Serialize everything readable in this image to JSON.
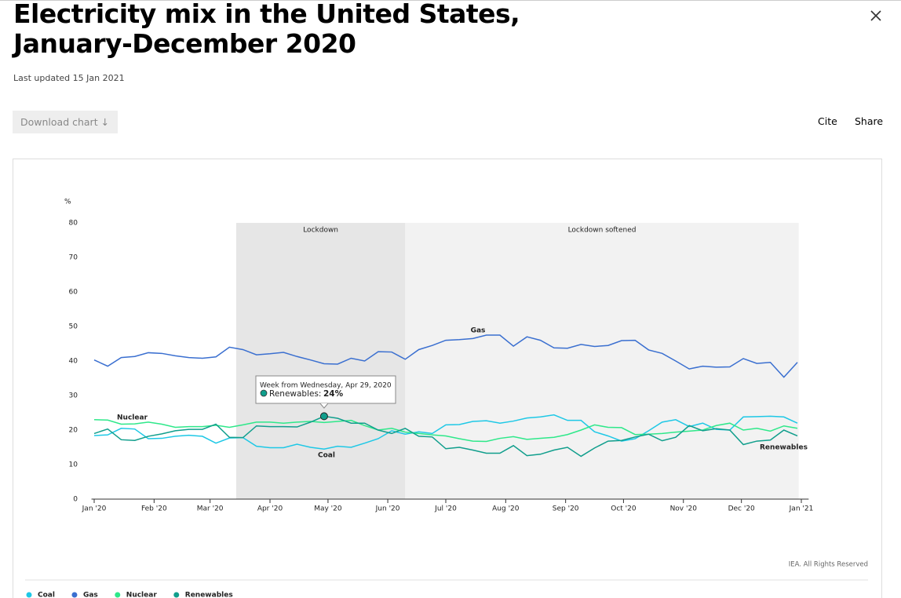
{
  "header": {
    "title": "Electricity mix in the United States, January-December 2020",
    "updated": "Last updated 15 Jan 2021",
    "download": "Download chart ↓",
    "cite": "Cite",
    "share": "Share"
  },
  "chart_data": {
    "type": "line",
    "y_unit": "%",
    "credit": "IEA. All Rights Reserved",
    "x": [
      0,
      1,
      2,
      3,
      4,
      5,
      6,
      7,
      8,
      9,
      10,
      11,
      12,
      13,
      14,
      15,
      16,
      17,
      18,
      19,
      20,
      21,
      22,
      23,
      24,
      25,
      26,
      27,
      28,
      29,
      30,
      31,
      32,
      33,
      34,
      35,
      36,
      37,
      38,
      39,
      40,
      41,
      42,
      43,
      44,
      45,
      46,
      47,
      48,
      49,
      50,
      51,
      52
    ],
    "xlim": [
      -0.2,
      52.6
    ],
    "xticks": [
      {
        "value": 0,
        "label": "Jan '20"
      },
      {
        "value": 4.43,
        "label": "Feb '20"
      },
      {
        "value": 8.57,
        "label": "Mar '20"
      },
      {
        "value": 13,
        "label": "Apr '20"
      },
      {
        "value": 17.29,
        "label": "May '20"
      },
      {
        "value": 21.71,
        "label": "Jun '20"
      },
      {
        "value": 26,
        "label": "Jul '20"
      },
      {
        "value": 30.43,
        "label": "Aug '20"
      },
      {
        "value": 34.86,
        "label": "Sep '20"
      },
      {
        "value": 39.14,
        "label": "Oct '20"
      },
      {
        "value": 43.57,
        "label": "Nov '20"
      },
      {
        "value": 47.86,
        "label": "Dec '20"
      },
      {
        "value": 52.29,
        "label": "Jan '21"
      }
    ],
    "ylim": [
      0,
      80
    ],
    "yticks": [
      0,
      10,
      20,
      30,
      40,
      50,
      60,
      70,
      80
    ],
    "periods": [
      {
        "label": "Lockdown",
        "x": [
          10.5,
          23
        ],
        "color": "#e6e6e6"
      },
      {
        "label": "Lockdown softened",
        "x": [
          23,
          52.1
        ],
        "color": "#f2f2f2"
      }
    ],
    "series": [
      {
        "name": "Coal",
        "color": "#1ec8e6",
        "values": [
          18.4,
          18.6,
          20.5,
          20.3,
          17.5,
          17.6,
          18.2,
          18.5,
          18.2,
          16.2,
          17.7,
          17.8,
          15.3,
          14.9,
          14.9,
          15.9,
          15,
          14.5,
          15.3,
          15,
          16.2,
          17.5,
          19.8,
          18.8,
          19.5,
          19,
          21.5,
          21.6,
          22.5,
          22.7,
          22,
          22.6,
          23.5,
          23.8,
          24.4,
          22.8,
          22.8,
          19.5,
          18.3,
          16.8,
          17.5,
          19.8,
          22.3,
          23,
          21,
          22,
          20.2,
          20,
          23.8,
          23.9,
          24,
          23.8,
          22
        ]
      },
      {
        "name": "Gas",
        "color": "#3a6fd0",
        "values": [
          40.3,
          38.5,
          41,
          41.3,
          42.4,
          42.2,
          41.5,
          41,
          40.8,
          41.2,
          44,
          43.3,
          41.8,
          42.1,
          42.5,
          41.3,
          40.3,
          39.2,
          39.1,
          40.8,
          40,
          42.7,
          42.6,
          40.5,
          43.3,
          44.5,
          46,
          46.2,
          46.5,
          47.5,
          47.5,
          44.3,
          47,
          46,
          43.8,
          43.7,
          44.8,
          44.2,
          44.5,
          45.9,
          46,
          43.2,
          42.2,
          40,
          37.7,
          38.5,
          38.2,
          38.3,
          40.7,
          39.3,
          39.6,
          35.3,
          39.6
        ]
      },
      {
        "name": "Nuclear",
        "color": "#2ee88a",
        "values": [
          23,
          22.9,
          21.7,
          21.8,
          22.3,
          21.7,
          20.8,
          21,
          21,
          21.4,
          20.8,
          21.5,
          22.3,
          22.3,
          22,
          22.3,
          22.5,
          22.2,
          22.5,
          22.8,
          21.3,
          20,
          20.5,
          19.4,
          19,
          18.6,
          18.3,
          17.5,
          16.8,
          16.7,
          17.6,
          18.1,
          17.3,
          17.6,
          17.9,
          18.7,
          20,
          21.5,
          20.8,
          20.7,
          18.7,
          18.8,
          19,
          19.4,
          19.7,
          20,
          21.3,
          22,
          20,
          20.5,
          19.7,
          21.2,
          20.5
        ]
      },
      {
        "name": "Renewables",
        "color": "#109e8c",
        "values": [
          19,
          20.3,
          17.2,
          17,
          18.2,
          18.9,
          19.8,
          20.2,
          20.2,
          21.7,
          17.9,
          17.8,
          21.2,
          21,
          21,
          20.9,
          22.3,
          24,
          23.4,
          22,
          22,
          20,
          19,
          20.5,
          18.2,
          18,
          14.6,
          15,
          14.2,
          13.3,
          13.3,
          15.5,
          12.6,
          13,
          14.2,
          15,
          12.4,
          14.8,
          16.8,
          17,
          18,
          18.8,
          16.9,
          17.9,
          21.3,
          19.8,
          20.4,
          20,
          15.8,
          16.8,
          17.1,
          20,
          18.3
        ]
      }
    ],
    "tooltip": {
      "title": "Week from Wednesday, Apr 29, 2020",
      "label": "Renewables:",
      "value": 24,
      "value_label": "24%",
      "series": 3,
      "x": 17
    }
  }
}
